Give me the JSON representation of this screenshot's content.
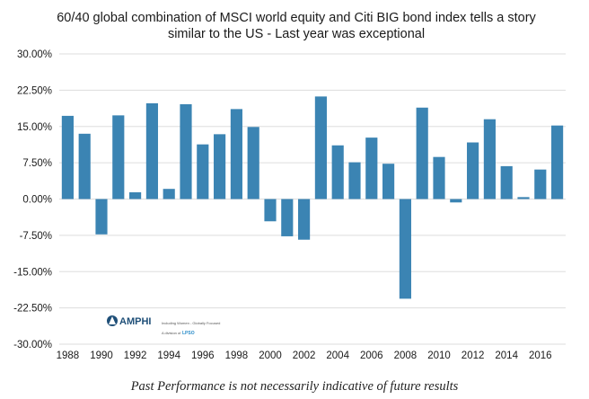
{
  "chart_data": {
    "type": "bar",
    "title_lines": [
      "60/40 global combination of MSCI world equity and Citi BIG bond index tells a story",
      "similar to the US - Last year was exceptional"
    ],
    "x": [
      1988,
      1989,
      1990,
      1991,
      1992,
      1993,
      1994,
      1995,
      1996,
      1997,
      1998,
      1999,
      2000,
      2001,
      2002,
      2003,
      2004,
      2005,
      2006,
      2007,
      2008,
      2009,
      2010,
      2011,
      2012,
      2013,
      2014,
      2015,
      2016,
      2017
    ],
    "values": [
      17.2,
      13.5,
      -7.3,
      17.3,
      1.4,
      19.8,
      2.1,
      19.6,
      11.3,
      13.4,
      18.6,
      14.9,
      -4.6,
      -7.7,
      -8.4,
      21.2,
      11.1,
      7.6,
      12.7,
      7.3,
      -20.6,
      18.9,
      8.7,
      -0.7,
      11.7,
      16.5,
      6.8,
      0.4,
      6.1,
      15.2
    ],
    "ylim": [
      -30,
      30
    ],
    "y_ticks": [
      -30,
      -22.5,
      -15,
      -7.5,
      0,
      7.5,
      15,
      22.5,
      30
    ],
    "y_tick_labels": [
      "-30.00%",
      "-22.50%",
      "-15.00%",
      "-7.50%",
      "0.00%",
      "7.50%",
      "15.00%",
      "22.50%",
      "30.00%"
    ],
    "x_tick_labels": [
      "1988",
      "1990",
      "1992",
      "1994",
      "1996",
      "1998",
      "2000",
      "2002",
      "2004",
      "2006",
      "2008",
      "2010",
      "2012",
      "2014",
      "2016"
    ],
    "grid": true,
    "bar_color": "#3b84b3"
  },
  "logo": {
    "name": "AMPHI",
    "tagline": "Including Women - Globally Focused",
    "division": "A division of",
    "parent": "LPSO"
  },
  "caption": "Past Performance is not necessarily indicative of future results"
}
